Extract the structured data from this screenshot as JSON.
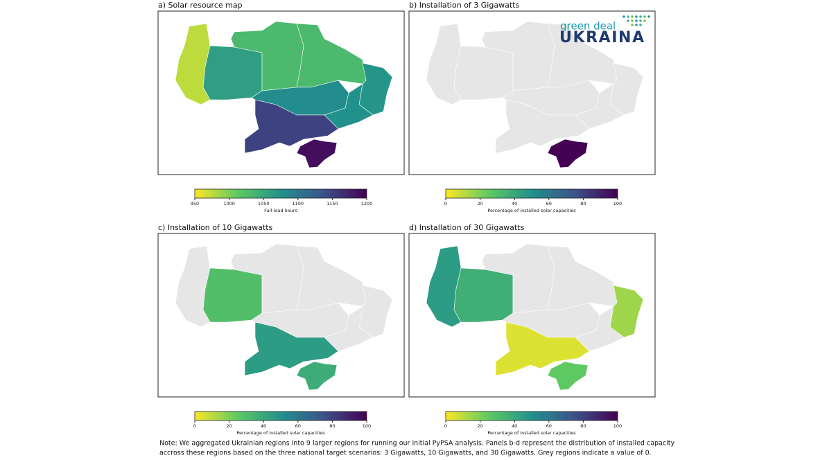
{
  "colormap": "viridis_r",
  "zero_color": "#e6e6e6",
  "panels": [
    {
      "title": "a) Solar resource map",
      "map": {
        "values": [
          975,
          1060,
          1030,
          1030,
          1070,
          1080,
          1075,
          1150,
          1190
        ]
      },
      "colorbar": {
        "lim": [
          950,
          1200
        ],
        "ticks": [
          950,
          1000,
          1050,
          1100,
          1150,
          1200
        ],
        "label": "Full-load hours"
      }
    },
    {
      "title": "b) Installation of 3 Gigawatts",
      "map": {
        "values": [
          0,
          0,
          0,
          0,
          0,
          0,
          0,
          0,
          100
        ]
      },
      "colorbar": {
        "lim": [
          0,
          100
        ],
        "ticks": [
          0,
          20,
          40,
          60,
          80,
          100
        ],
        "label": "Percentage of installed solar capacities"
      }
    },
    {
      "title": "c) Installation of 10 Gigawatts",
      "map": {
        "values": [
          0,
          30,
          0,
          0,
          0,
          0,
          0,
          45,
          38
        ]
      },
      "colorbar": {
        "lim": [
          0,
          100
        ],
        "ticks": [
          0,
          20,
          40,
          60,
          80,
          100
        ],
        "label": "Percentage of installed solar capacities"
      }
    },
    {
      "title": "d) Installation of 30 Gigawatts",
      "map": {
        "values": [
          45,
          37,
          0,
          0,
          15,
          0,
          0,
          5,
          25
        ]
      },
      "colorbar": {
        "lim": [
          0,
          100
        ],
        "ticks": [
          0,
          20,
          40,
          60,
          80,
          100
        ],
        "label": "Percentage of installed solar capacities"
      }
    }
  ],
  "logo": {
    "line1": "green deal",
    "line2": "UKRAINA"
  },
  "note": {
    "line1": "Note: We aggregated Ukrainian regions into 9 larger regions for running our initial PyPSA analysis. Panels b-d represent the distribution of installed capacity",
    "line2": " accross these regions based on the three national target scenarios: 3 Gigawatts, 10 Gigawatts, and 30 Gigawatts. Grey regions indicate a value of 0."
  }
}
